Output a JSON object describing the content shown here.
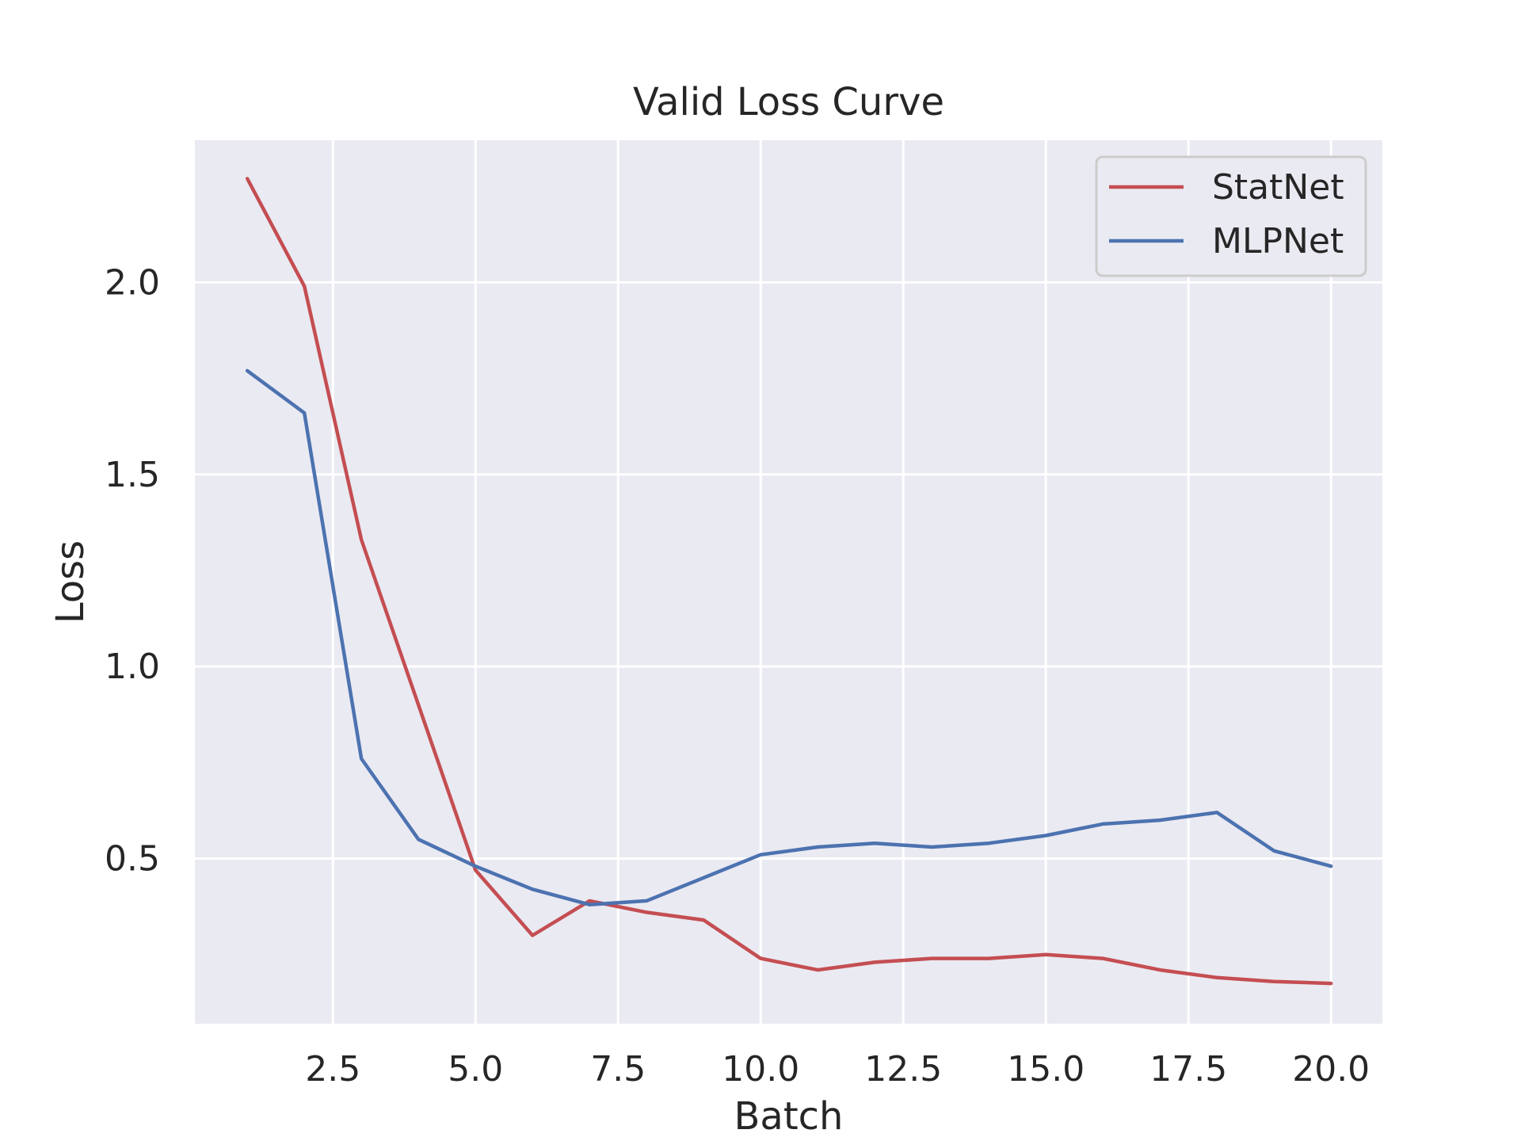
{
  "chart_data": {
    "type": "line",
    "title": "Valid Loss Curve",
    "xlabel": "Batch",
    "ylabel": "Loss",
    "xlim": [
      0.08,
      20.9
    ],
    "ylim": [
      0.07,
      2.37
    ],
    "x_ticks": [
      2.5,
      5.0,
      7.5,
      10.0,
      12.5,
      15.0,
      17.5,
      20.0
    ],
    "x_tick_labels": [
      "2.5",
      "5.0",
      "7.5",
      "10.0",
      "12.5",
      "15.0",
      "17.5",
      "20.0"
    ],
    "y_ticks": [
      0.5,
      1.0,
      1.5,
      2.0
    ],
    "y_tick_labels": [
      "0.5",
      "1.0",
      "1.5",
      "2.0"
    ],
    "grid": true,
    "legend_position": "top-right",
    "x": [
      1,
      2,
      3,
      4,
      5,
      6,
      7,
      8,
      9,
      10,
      11,
      12,
      13,
      14,
      15,
      16,
      17,
      18,
      19,
      20
    ],
    "series": [
      {
        "name": "StatNet",
        "color": "#c44e52",
        "values": [
          2.27,
          1.99,
          1.33,
          0.9,
          0.47,
          0.3,
          0.39,
          0.36,
          0.34,
          0.24,
          0.21,
          0.23,
          0.24,
          0.24,
          0.25,
          0.24,
          0.21,
          0.19,
          0.18,
          0.175
        ]
      },
      {
        "name": "MLPNet",
        "color": "#4c72b0",
        "values": [
          1.77,
          1.66,
          0.76,
          0.55,
          0.48,
          0.42,
          0.38,
          0.39,
          0.45,
          0.51,
          0.53,
          0.54,
          0.53,
          0.54,
          0.56,
          0.59,
          0.6,
          0.62,
          0.52,
          0.48
        ]
      }
    ]
  }
}
